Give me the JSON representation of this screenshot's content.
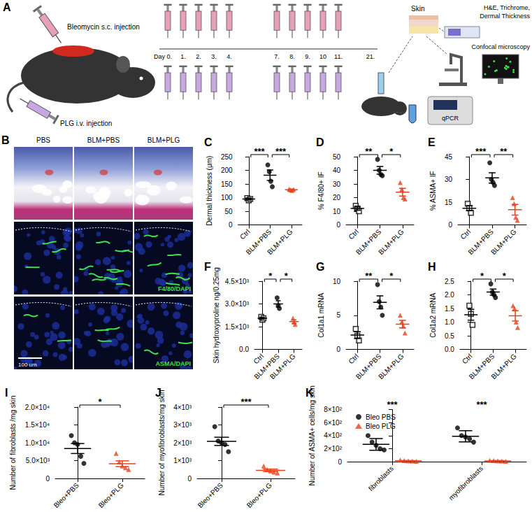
{
  "chart_data": [
    {
      "type": "scatter",
      "title": "C",
      "y_label": "Dermal thickness (μm)",
      "categories": [
        "Ctrl",
        "BLM+PBS",
        "BLM+PLG"
      ],
      "ylim": [
        0,
        250
      ],
      "yticks": [
        0,
        50,
        100,
        150,
        200,
        250
      ],
      "series": [
        {
          "colors": [
            "#000000",
            "#000000",
            "#e8401c"
          ],
          "markers": [
            "square_open",
            "circle",
            "triangle"
          ],
          "values": [
            [
              98,
              90,
              95
            ],
            [
              220,
              195,
              160,
              140
            ],
            [
              131,
              128,
              126,
              130
            ]
          ],
          "mean": [
            95,
            182,
            129
          ],
          "error": [
            3,
            19,
            1.5
          ]
        }
      ],
      "annotations": [
        {
          "from": 0,
          "to": 1,
          "text": "***"
        },
        {
          "from": 1,
          "to": 2,
          "text": "***"
        }
      ]
    },
    {
      "type": "scatter",
      "title": "D",
      "y_label": "% F4/80+ IF",
      "categories": [
        "Ctrl",
        "BLM+PBS",
        "BLM+PLG"
      ],
      "ylim": [
        0,
        50
      ],
      "yticks": [
        0,
        10,
        20,
        30,
        40,
        50
      ],
      "series": [
        {
          "colors": [
            "#000000",
            "#000000",
            "#e8401c"
          ],
          "markers": [
            "square_open",
            "circle",
            "triangle"
          ],
          "values": [
            [
              14,
              12,
              10
            ],
            [
              48,
              40,
              37,
              36
            ],
            [
              31,
              26,
              20,
              19
            ]
          ],
          "mean": [
            12,
            40,
            24
          ],
          "error": [
            1.2,
            2.8,
            2.8
          ]
        }
      ],
      "annotations": [
        {
          "from": 0,
          "to": 1,
          "text": "**"
        },
        {
          "from": 1,
          "to": 2,
          "text": "*"
        }
      ]
    },
    {
      "type": "scatter",
      "title": "E",
      "y_label": "% ASMA+ IF",
      "categories": [
        "Ctrl",
        "BLM+PBS",
        "BLM+PLG"
      ],
      "ylim": [
        0,
        45
      ],
      "yticks": [
        0,
        15,
        30,
        45
      ],
      "series": [
        {
          "colors": [
            "#000000",
            "#000000",
            "#e8401c"
          ],
          "markers": [
            "square_open",
            "circle",
            "triangle"
          ],
          "values": [
            [
              14,
              11,
              8
            ],
            [
              41,
              30,
              28,
              26
            ],
            [
              18,
              14,
              5,
              3
            ]
          ],
          "mean": [
            11,
            31,
            10
          ],
          "error": [
            1.7,
            3.4,
            3.5
          ]
        }
      ],
      "annotations": [
        {
          "from": 0,
          "to": 1,
          "text": "***"
        },
        {
          "from": 1,
          "to": 2,
          "text": "**"
        }
      ]
    },
    {
      "type": "scatter",
      "title": "F",
      "y_label": "Skin hydroxyproline ng/0.25mg",
      "categories": [
        "Ctrl",
        "BLM+PBS",
        "BLM+PLG"
      ],
      "ylim": [
        0,
        4500
      ],
      "yticks": [
        {
          "value": 0,
          "label": "0.0"
        },
        {
          "value": 1500,
          "label": "1.5×10³"
        },
        {
          "value": 3000,
          "label": "3.0×10³"
        },
        {
          "value": 4500,
          "label": "4.5×10³"
        }
      ],
      "series": [
        {
          "colors": [
            "#000000",
            "#000000",
            "#e8401c"
          ],
          "markers": [
            "square_open",
            "circle",
            "triangle"
          ],
          "values": [
            [
              2150,
              1950,
              2050
            ],
            [
              3400,
              2900,
              2700
            ],
            [
              2050,
              1800,
              1650
            ]
          ],
          "mean": [
            2050,
            3000,
            1833
          ],
          "error": [
            58,
            208,
            117
          ]
        }
      ],
      "annotations": [
        {
          "from": 0,
          "to": 1,
          "text": "*"
        },
        {
          "from": 1,
          "to": 2,
          "text": "*"
        }
      ]
    },
    {
      "type": "scatter",
      "title": "G",
      "y_label": "Col1a1 mRNA",
      "categories": [
        "Ctrl",
        "BLM+PBS",
        "BLM+PLG"
      ],
      "ylim": [
        0,
        10
      ],
      "yticks": [
        0,
        5,
        10
      ],
      "series": [
        {
          "colors": [
            "#000000",
            "#000000",
            "#e8401c"
          ],
          "markers": [
            "square_open",
            "circle",
            "triangle"
          ],
          "values": [
            [
              3,
              2,
              1.3
            ],
            [
              9.5,
              7,
              6.2,
              5
            ],
            [
              5,
              4,
              3.4,
              2.4
            ]
          ],
          "mean": [
            2.1,
            6.9,
            3.7
          ],
          "error": [
            0.5,
            0.95,
            0.55
          ]
        }
      ],
      "annotations": [
        {
          "from": 0,
          "to": 1,
          "text": "**"
        },
        {
          "from": 1,
          "to": 2,
          "text": "*"
        }
      ]
    },
    {
      "type": "scatter",
      "title": "H",
      "y_label": "Col1a2 mRNA",
      "categories": [
        "Ctrl",
        "BLM+PBS",
        "BLM+PLG"
      ],
      "ylim": [
        0,
        2.5
      ],
      "yticks": [
        {
          "value": 0,
          "label": "0.0"
        },
        0.5,
        {
          "value": 1,
          "label": "1.0"
        },
        1.5,
        {
          "value": 2,
          "label": "2.0"
        },
        2.5
      ],
      "series": [
        {
          "colors": [
            "#000000",
            "#000000",
            "#e8401c"
          ],
          "markers": [
            "square_open",
            "circle",
            "triangle"
          ],
          "values": [
            [
              1.6,
              1.3,
              0.9
            ],
            [
              2.4,
              2.1,
              2.0,
              1.9
            ],
            [
              1.6,
              1.5,
              1.0,
              0.8
            ]
          ],
          "mean": [
            1.27,
            2.1,
            1.23
          ],
          "error": [
            0.2,
            0.11,
            0.19
          ]
        }
      ],
      "annotations": [
        {
          "from": 0,
          "to": 1,
          "text": "*"
        },
        {
          "from": 1,
          "to": 2,
          "text": "*"
        }
      ]
    },
    {
      "type": "scatter",
      "title": "I",
      "y_label": "Number of fibroblasts /mg skin",
      "categories": [
        "Bleo+PBS",
        "Bleo+PLG"
      ],
      "ylim": [
        0,
        20000
      ],
      "yticks": [
        0,
        {
          "value": 5000,
          "label": "5.0×10³"
        },
        {
          "value": 10000,
          "label": "1.0×10⁴"
        },
        {
          "value": 15000,
          "label": "1.5×10⁴"
        },
        {
          "value": 20000,
          "label": "2.0×10⁴"
        }
      ],
      "series": [
        {
          "colors": [
            "#000000",
            "#e8401c"
          ],
          "markers": [
            "circle",
            "triangle"
          ],
          "values": [
            [
              12000,
              10000,
              9500,
              6200,
              4200
            ],
            [
              7000,
              4600,
              3500,
              3000,
              2500
            ]
          ],
          "mean": [
            8380,
            4120
          ],
          "error": [
            1400,
            800
          ]
        }
      ],
      "annotations": [
        {
          "from": 0,
          "to": 1,
          "text": "*"
        }
      ]
    },
    {
      "type": "scatter",
      "title": "J",
      "y_label": "Number of myofibroblasts/mg skin",
      "categories": [
        "Bleo+PBS",
        "Bleo+PLG"
      ],
      "ylim": [
        0,
        4000
      ],
      "yticks": [
        0,
        {
          "value": 1000,
          "label": "1×10³"
        },
        {
          "value": 2000,
          "label": "2×10³"
        },
        {
          "value": 3000,
          "label": "3×10³"
        },
        {
          "value": 4000,
          "label": "4×10³"
        }
      ],
      "series": [
        {
          "colors": [
            "#000000",
            "#e8401c"
          ],
          "markers": [
            "circle",
            "triangle"
          ],
          "values": [
            [
              2900,
              2100,
              2000,
              1900,
              1500
            ],
            [
              700,
              500,
              420,
              350,
              300
            ]
          ],
          "mean": [
            2080,
            454
          ],
          "error": [
            230,
            70
          ]
        }
      ],
      "annotations": [
        {
          "from": 0,
          "to": 1,
          "text": "***"
        }
      ]
    },
    {
      "type": "scatter",
      "title": "K",
      "y_label": "Number of ASMA+ cells/mg skin",
      "categories": [
        "fibroblasts",
        "myofibroblasts"
      ],
      "ylim": [
        0,
        800
      ],
      "yticks": [
        0,
        {
          "value": 200,
          "label": "2×10²"
        },
        {
          "value": 400,
          "label": "4×10²"
        },
        {
          "value": 600,
          "label": "6×10²"
        },
        {
          "value": 800,
          "label": "8×10²"
        }
      ],
      "legend": "top-left",
      "series": [
        {
          "name": "Bleo PBS",
          "color": "#000000",
          "marker": "circle",
          "values": [
            [
              400,
              300,
              250,
              200,
              180
            ],
            [
              520,
              400,
              380,
              350,
              300
            ]
          ],
          "mean": [
            266,
            390
          ],
          "error": [
            90,
            85
          ]
        },
        {
          "name": "Bleo PLG",
          "color": "#e8401c",
          "marker": "triangle",
          "values": [
            [
              25,
              15,
              10,
              8,
              5
            ],
            [
              20,
              15,
              12,
              8,
              6
            ]
          ],
          "mean": [
            13,
            12
          ],
          "error": [
            4,
            3
          ]
        }
      ],
      "annotations": [
        {
          "from": 0,
          "to": 0,
          "text": "***"
        },
        {
          "from": 1,
          "to": 1,
          "text": "***"
        }
      ]
    }
  ],
  "figure": {
    "panel_a": {
      "label": "A",
      "top_injection": "Bleomycin s.c. injection",
      "bottom_injection": "PLG i.v. injection",
      "days": [
        "Day 0.",
        "1.",
        "2.",
        "3.",
        "4.",
        "7.",
        "8.",
        "9.",
        "10",
        "11.",
        "21."
      ],
      "skin": "Skin",
      "histology": [
        "H&E, Trichrome,",
        "Dermal Thickness"
      ],
      "imaging": "Confocal microscopy",
      "pcr": "qPCR"
    },
    "panel_b": {
      "label": "B",
      "columns": [
        "PBS",
        "BLM+PBS",
        "BLM+PLG"
      ],
      "rows": [
        "F4/80/DAPI",
        "ASMA/DAPI"
      ],
      "scale_bar": "100 um"
    }
  }
}
